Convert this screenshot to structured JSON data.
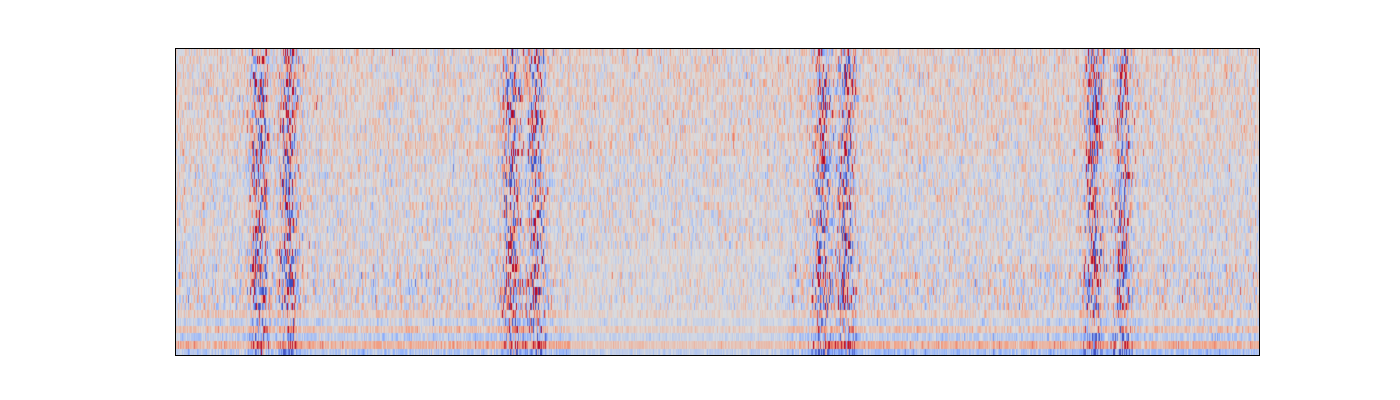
{
  "chart_data": {
    "type": "heatmap",
    "title": "",
    "xlabel": "",
    "ylabel": "",
    "x_ticks": [],
    "y_ticks": [],
    "colormap": "coolwarm",
    "colorbar": false,
    "grid": false,
    "rows": 40,
    "cols": 1100,
    "value_range": [
      -1,
      1
    ],
    "aspect": "auto",
    "event_bands_col_index": [
      85,
      115,
      340,
      365,
      655,
      680,
      930,
      960
    ],
    "low_rows_baseline": {
      "rows_from_bottom": [
        0,
        1,
        2,
        3,
        4,
        5
      ],
      "left_edge_values": [
        -0.45,
        0.55,
        -0.35,
        0.35,
        -0.25,
        0.25
      ],
      "right_edge_values": [
        -0.65,
        0.6,
        -0.4,
        0.35,
        -0.25,
        0.2
      ]
    },
    "colors": {
      "cold": "#3b4cc0",
      "neutral": "#dddddd",
      "hot": "#b40426"
    }
  }
}
